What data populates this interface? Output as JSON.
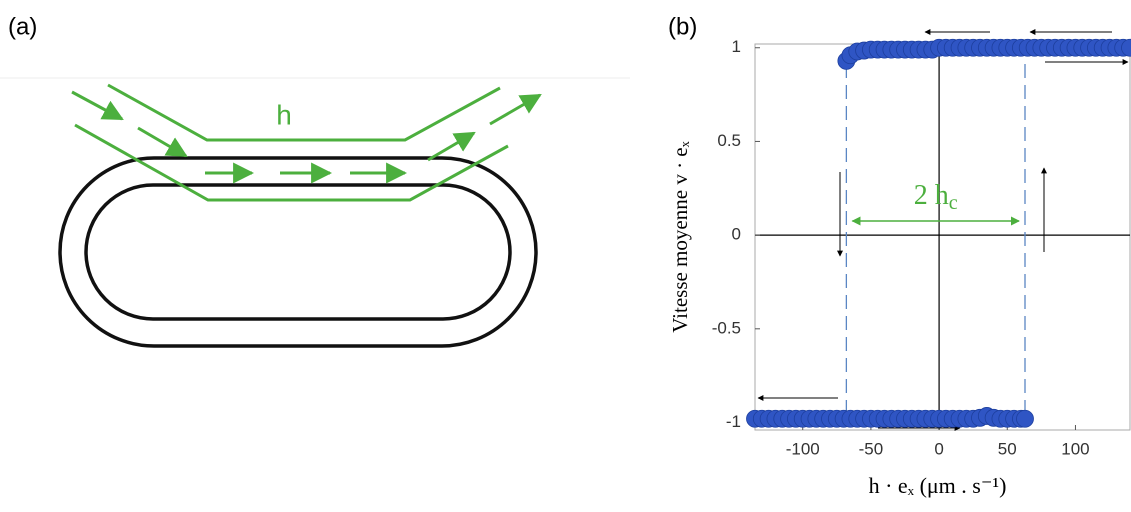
{
  "panels": {
    "a": "(a)",
    "b": "(b)"
  },
  "diagram": {
    "field_label": "h"
  },
  "chart_data": {
    "type": "scatter",
    "ylabel": "Vitesse moyenne v · eₓ",
    "xlabel": "h · eₓ (μm . s⁻¹)",
    "annotation": {
      "main": "2 h",
      "sub": "c"
    },
    "thresholds": [
      -68,
      63
    ],
    "xlim": [
      -135,
      140
    ],
    "ylim": [
      -1.04,
      1.02
    ],
    "xticks": [
      -100,
      -50,
      0,
      50,
      100
    ],
    "yticks": [
      -1,
      -0.5,
      0,
      0.5,
      1
    ],
    "series": [
      {
        "color": "#2f55c4",
        "x": [
          -68,
          -65,
          -60,
          -55,
          -50,
          -45,
          -40,
          -35,
          -30,
          -25,
          -20,
          -15,
          -10,
          -5,
          0,
          5,
          10,
          15,
          20,
          25,
          30,
          35,
          40,
          45,
          50,
          55,
          60,
          65,
          70,
          75,
          80,
          85,
          90,
          95,
          100,
          105,
          110,
          115,
          120,
          125,
          130,
          135,
          140
        ],
        "values": [
          0.93,
          0.96,
          0.98,
          0.985,
          0.99,
          0.99,
          0.99,
          0.99,
          0.99,
          0.99,
          0.99,
          0.99,
          0.99,
          0.99,
          1,
          1,
          1,
          1,
          1,
          1,
          1,
          1,
          1,
          1,
          1,
          1,
          1,
          1,
          1,
          1,
          1,
          1,
          1,
          1,
          1,
          1,
          1,
          1,
          1,
          1,
          1,
          1,
          1
        ]
      },
      {
        "color": "#2f55c4",
        "x": [
          -135,
          -130,
          -125,
          -120,
          -115,
          -110,
          -105,
          -100,
          -95,
          -90,
          -85,
          -80,
          -75,
          -70,
          -65,
          -60,
          -55,
          -50,
          -45,
          -40,
          -35,
          -30,
          -25,
          -20,
          -15,
          -10,
          -5,
          0,
          5,
          10,
          15,
          20,
          25,
          30,
          35,
          40,
          45,
          50,
          55,
          60,
          63
        ],
        "values": [
          -0.98,
          -0.98,
          -0.98,
          -0.98,
          -0.98,
          -0.98,
          -0.98,
          -0.98,
          -0.98,
          -0.98,
          -0.98,
          -0.98,
          -0.98,
          -0.98,
          -0.98,
          -0.98,
          -0.98,
          -0.98,
          -0.98,
          -0.98,
          -0.98,
          -0.98,
          -0.98,
          -0.98,
          -0.98,
          -0.98,
          -0.98,
          -0.98,
          -0.98,
          -0.98,
          -0.98,
          -0.98,
          -0.98,
          -0.975,
          -0.965,
          -0.975,
          -0.98,
          -0.98,
          -0.98,
          -0.98,
          -0.98
        ]
      }
    ]
  }
}
